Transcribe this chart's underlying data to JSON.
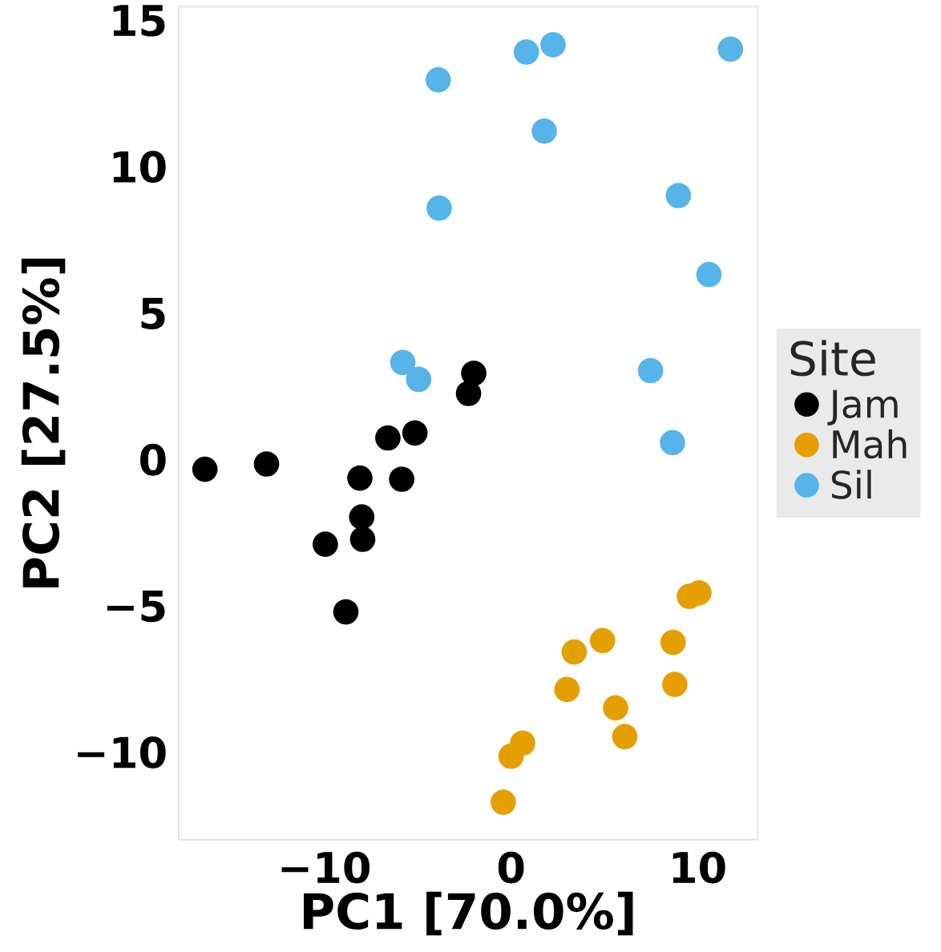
{
  "chart_data": {
    "type": "scatter",
    "xlabel": "PC1 [70.0%]",
    "ylabel": "PC2 [27.5%]",
    "legend_title": "Site",
    "legend": "right",
    "marker": "circle",
    "grid": false,
    "xlim": [
      -17.8,
      13.2
    ],
    "ylim": [
      -13.0,
      15.45
    ],
    "xticks": [
      {
        "value": -10,
        "label": "−10"
      },
      0,
      10
    ],
    "yticks": [
      {
        "value": -10,
        "label": "−10"
      },
      {
        "value": -5,
        "label": "−5"
      },
      0,
      5,
      10,
      15
    ],
    "series": [
      {
        "name": "Jam",
        "color": "#000000",
        "x": [
          -2.0,
          -2.28,
          -6.6,
          -5.15,
          -16.4,
          -13.1,
          -8.1,
          -5.86,
          -8.0,
          -7.95,
          -9.95,
          -8.85
        ],
        "values": [
          2.93,
          2.24,
          0.72,
          0.89,
          -0.35,
          -0.17,
          -0.65,
          -0.69,
          -1.98,
          -2.74,
          -2.91,
          -5.22
        ]
      },
      {
        "name": "Mah",
        "color": "#e69f00",
        "x": [
          9.55,
          10.06,
          4.9,
          3.38,
          8.68,
          2.99,
          8.77,
          5.6,
          6.09,
          0.62,
          0.0,
          -0.42
        ],
        "values": [
          -4.69,
          -4.57,
          -6.2,
          -6.59,
          -6.26,
          -7.87,
          -7.7,
          -8.5,
          -9.48,
          -9.7,
          -10.15,
          -11.72
        ]
      },
      {
        "name": "Sil",
        "color": "#56b4e9",
        "x": [
          0.82,
          2.25,
          11.75,
          -3.9,
          1.78,
          8.96,
          -3.85,
          10.6,
          -5.8,
          -4.95,
          7.47,
          8.65
        ],
        "values": [
          13.9,
          14.15,
          14.0,
          12.95,
          11.2,
          9.0,
          8.57,
          6.3,
          3.3,
          2.72,
          3.02,
          0.56
        ]
      }
    ]
  }
}
